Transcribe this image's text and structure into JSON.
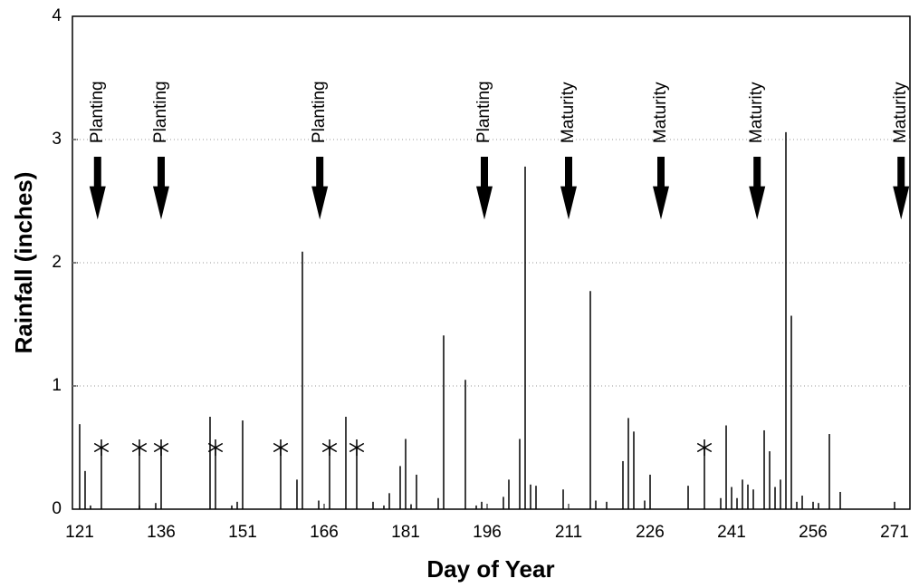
{
  "chart_data": {
    "type": "stem",
    "x_label": "Day of Year",
    "y_label": "Rainfall (inches)",
    "xlim": [
      119.67,
      273.83
    ],
    "ylim": [
      0,
      4
    ],
    "xticks": [
      121,
      136,
      151,
      166,
      181,
      196,
      211,
      226,
      241,
      256,
      271
    ],
    "yticks": [
      0,
      1,
      2,
      3,
      4
    ],
    "grid": true,
    "series": [
      {
        "color": "#000",
        "marker": "none",
        "x": [
          121,
          122,
          123,
          132,
          135,
          145,
          149,
          150,
          151,
          161,
          162,
          165,
          170,
          175,
          177,
          178,
          180,
          181,
          182,
          183,
          187,
          188,
          192,
          194,
          195,
          199,
          200,
          202,
          203,
          204,
          205,
          210,
          215,
          216,
          218,
          221,
          222,
          223,
          225,
          226,
          233,
          239,
          240,
          241,
          242,
          243,
          244,
          245,
          247,
          248,
          249,
          250,
          251,
          252,
          253,
          254,
          256,
          257,
          259,
          261,
          271
        ],
        "values": [
          0.69,
          0.31,
          0.03,
          0.03,
          0.05,
          0.75,
          0.03,
          0.06,
          0.72,
          0.24,
          2.09,
          0.07,
          0.75,
          0.06,
          0.03,
          0.13,
          0.35,
          0.57,
          0.04,
          0.28,
          0.09,
          1.41,
          1.05,
          0.03,
          0.06,
          0.1,
          0.24,
          0.57,
          2.78,
          0.2,
          0.19,
          0.16,
          1.77,
          0.07,
          0.06,
          0.39,
          0.74,
          0.63,
          0.07,
          0.28,
          0.19,
          0.09,
          0.68,
          0.18,
          0.09,
          0.24,
          0.2,
          0.16,
          0.64,
          0.47,
          0.18,
          0.24,
          3.06,
          1.57,
          0.06,
          0.11,
          0.06,
          0.05,
          0.61,
          0.14,
          0.06
        ]
      },
      {
        "color": "#000",
        "marker": "asterisk",
        "x": [
          125,
          132,
          136,
          146,
          158,
          167,
          172,
          236
        ],
        "values": [
          0.5,
          0.5,
          0.5,
          0.5,
          0.5,
          0.5,
          0.5,
          0.5
        ]
      }
    ],
    "annotations": [
      {
        "label": "Planting",
        "x": 124.3
      },
      {
        "label": "Planting",
        "x": 136
      },
      {
        "label": "Planting",
        "x": 165.2
      },
      {
        "label": "Planting",
        "x": 195.5
      },
      {
        "label": "Maturity",
        "x": 211
      },
      {
        "label": "Maturity",
        "x": 228
      },
      {
        "label": "Maturity",
        "x": 245.7
      },
      {
        "label": "Maturity",
        "x": 272.2
      }
    ]
  }
}
